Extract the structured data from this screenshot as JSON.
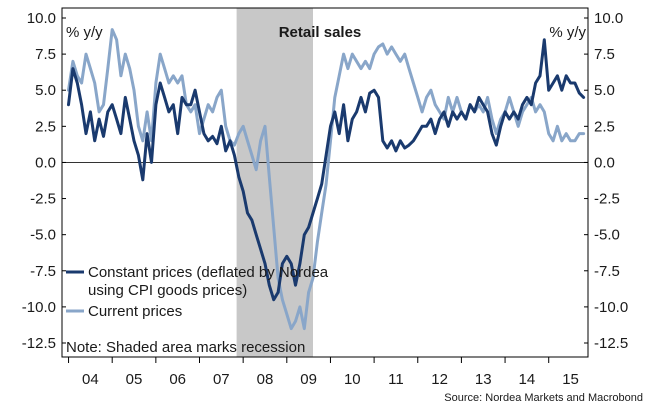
{
  "chart_data": {
    "type": "line",
    "title": "Retail sales",
    "ylabel_left": "% y/y",
    "ylabel_right": "% y/y",
    "ylim": [
      -12.5,
      10.0
    ],
    "yticks": [
      10.0,
      7.5,
      5.0,
      2.5,
      0.0,
      -2.5,
      -5.0,
      -7.5,
      -10.0,
      -12.5
    ],
    "ytick_labels": [
      "10.0",
      "7.5",
      "5.0",
      "2.5",
      "0.0",
      "-2.5",
      "-5.0",
      "-7.5",
      "-10.0",
      "-12.5"
    ],
    "xlim": [
      2003.85,
      2015.9
    ],
    "x_tick_labels": [
      "04",
      "05",
      "06",
      "07",
      "08",
      "09",
      "10",
      "11",
      "12",
      "13",
      "14",
      "15"
    ],
    "recession": {
      "start": 2007.85,
      "end": 2009.6
    },
    "legend": [
      "Constant prices (deflated by Nordea using CPI goods prices)",
      "Current prices"
    ],
    "legend_placement": "bottom-left",
    "note": "Note: Shaded area marks recession",
    "source": "Source: Nordea Markets and Macrobond",
    "colors": {
      "constant": "#1a3a6e",
      "current": "#89a6c9",
      "recession": "#c8c8c8"
    },
    "series": [
      {
        "name": "Constant prices (deflated by Nordea using CPI goods prices)",
        "points": [
          [
            2004.0,
            4.0
          ],
          [
            2004.1,
            6.5
          ],
          [
            2004.2,
            5.5
          ],
          [
            2004.3,
            4.0
          ],
          [
            2004.4,
            2.0
          ],
          [
            2004.5,
            3.5
          ],
          [
            2004.6,
            1.5
          ],
          [
            2004.7,
            3.0
          ],
          [
            2004.8,
            1.8
          ],
          [
            2004.9,
            3.5
          ],
          [
            2005.0,
            4.0
          ],
          [
            2005.1,
            3.0
          ],
          [
            2005.2,
            2.0
          ],
          [
            2005.3,
            4.5
          ],
          [
            2005.4,
            3.0
          ],
          [
            2005.5,
            1.5
          ],
          [
            2005.6,
            0.5
          ],
          [
            2005.7,
            -1.2
          ],
          [
            2005.8,
            2.0
          ],
          [
            2005.9,
            0.0
          ],
          [
            2006.0,
            4.0
          ],
          [
            2006.1,
            5.5
          ],
          [
            2006.2,
            4.5
          ],
          [
            2006.3,
            3.5
          ],
          [
            2006.4,
            4.0
          ],
          [
            2006.5,
            2.0
          ],
          [
            2006.6,
            4.5
          ],
          [
            2006.7,
            4.0
          ],
          [
            2006.8,
            4.0
          ],
          [
            2006.9,
            5.0
          ],
          [
            2007.0,
            3.5
          ],
          [
            2007.1,
            2.0
          ],
          [
            2007.2,
            1.5
          ],
          [
            2007.3,
            1.8
          ],
          [
            2007.4,
            1.3
          ],
          [
            2007.5,
            2.5
          ],
          [
            2007.6,
            0.8
          ],
          [
            2007.7,
            1.5
          ],
          [
            2007.8,
            0.5
          ],
          [
            2007.9,
            -1.0
          ],
          [
            2008.0,
            -2.0
          ],
          [
            2008.1,
            -3.5
          ],
          [
            2008.2,
            -4.0
          ],
          [
            2008.3,
            -5.0
          ],
          [
            2008.4,
            -6.0
          ],
          [
            2008.5,
            -7.0
          ],
          [
            2008.6,
            -8.5
          ],
          [
            2008.7,
            -9.5
          ],
          [
            2008.8,
            -9.0
          ],
          [
            2008.9,
            -7.0
          ],
          [
            2009.0,
            -6.5
          ],
          [
            2009.1,
            -7.0
          ],
          [
            2009.2,
            -8.5
          ],
          [
            2009.3,
            -7.0
          ],
          [
            2009.4,
            -5.0
          ],
          [
            2009.5,
            -4.5
          ],
          [
            2009.6,
            -3.5
          ],
          [
            2009.7,
            -2.5
          ],
          [
            2009.8,
            -1.5
          ],
          [
            2009.9,
            0.5
          ],
          [
            2010.0,
            2.5
          ],
          [
            2010.1,
            3.5
          ],
          [
            2010.2,
            2.0
          ],
          [
            2010.3,
            4.0
          ],
          [
            2010.4,
            1.5
          ],
          [
            2010.5,
            3.0
          ],
          [
            2010.6,
            3.5
          ],
          [
            2010.7,
            4.5
          ],
          [
            2010.8,
            3.5
          ],
          [
            2010.9,
            4.8
          ],
          [
            2011.0,
            5.0
          ],
          [
            2011.1,
            4.5
          ],
          [
            2011.2,
            1.5
          ],
          [
            2011.3,
            1.0
          ],
          [
            2011.4,
            1.5
          ],
          [
            2011.5,
            0.8
          ],
          [
            2011.6,
            1.5
          ],
          [
            2011.7,
            1.0
          ],
          [
            2011.8,
            1.2
          ],
          [
            2011.9,
            1.5
          ],
          [
            2012.0,
            2.0
          ],
          [
            2012.1,
            2.5
          ],
          [
            2012.2,
            2.5
          ],
          [
            2012.3,
            3.0
          ],
          [
            2012.4,
            2.0
          ],
          [
            2012.5,
            3.0
          ],
          [
            2012.6,
            3.5
          ],
          [
            2012.7,
            2.5
          ],
          [
            2012.8,
            3.5
          ],
          [
            2012.9,
            3.0
          ],
          [
            2013.0,
            3.5
          ],
          [
            2013.1,
            3.0
          ],
          [
            2013.2,
            4.0
          ],
          [
            2013.3,
            3.5
          ],
          [
            2013.4,
            4.5
          ],
          [
            2013.5,
            4.0
          ],
          [
            2013.6,
            3.5
          ],
          [
            2013.7,
            2.0
          ],
          [
            2013.8,
            1.2
          ],
          [
            2013.9,
            2.5
          ],
          [
            2014.0,
            3.5
          ],
          [
            2014.1,
            3.0
          ],
          [
            2014.2,
            3.5
          ],
          [
            2014.3,
            3.0
          ],
          [
            2014.4,
            4.0
          ],
          [
            2014.5,
            4.5
          ],
          [
            2014.6,
            4.0
          ],
          [
            2014.7,
            5.5
          ],
          [
            2014.8,
            6.0
          ],
          [
            2014.9,
            8.5
          ],
          [
            2015.0,
            5.0
          ],
          [
            2015.1,
            5.5
          ],
          [
            2015.2,
            6.0
          ],
          [
            2015.3,
            5.0
          ],
          [
            2015.4,
            6.0
          ],
          [
            2015.5,
            5.5
          ],
          [
            2015.6,
            5.5
          ],
          [
            2015.7,
            4.8
          ],
          [
            2015.8,
            4.5
          ]
        ]
      },
      {
        "name": "Current prices",
        "points": [
          [
            2004.0,
            5.0
          ],
          [
            2004.1,
            7.0
          ],
          [
            2004.2,
            6.0
          ],
          [
            2004.3,
            5.5
          ],
          [
            2004.4,
            7.5
          ],
          [
            2004.5,
            6.5
          ],
          [
            2004.6,
            5.5
          ],
          [
            2004.7,
            3.5
          ],
          [
            2004.8,
            4.0
          ],
          [
            2004.9,
            6.5
          ],
          [
            2005.0,
            9.2
          ],
          [
            2005.1,
            8.5
          ],
          [
            2005.2,
            6.0
          ],
          [
            2005.3,
            7.5
          ],
          [
            2005.4,
            6.5
          ],
          [
            2005.5,
            5.0
          ],
          [
            2005.6,
            2.5
          ],
          [
            2005.7,
            1.5
          ],
          [
            2005.8,
            3.5
          ],
          [
            2005.9,
            1.5
          ],
          [
            2006.0,
            5.5
          ],
          [
            2006.1,
            7.5
          ],
          [
            2006.2,
            6.5
          ],
          [
            2006.3,
            5.5
          ],
          [
            2006.4,
            6.0
          ],
          [
            2006.5,
            5.5
          ],
          [
            2006.6,
            6.0
          ],
          [
            2006.7,
            4.0
          ],
          [
            2006.8,
            3.5
          ],
          [
            2006.9,
            4.0
          ],
          [
            2007.0,
            2.0
          ],
          [
            2007.1,
            3.0
          ],
          [
            2007.2,
            4.0
          ],
          [
            2007.3,
            3.5
          ],
          [
            2007.4,
            4.5
          ],
          [
            2007.5,
            5.0
          ],
          [
            2007.6,
            2.5
          ],
          [
            2007.7,
            1.5
          ],
          [
            2007.8,
            1.2
          ],
          [
            2007.9,
            2.0
          ],
          [
            2008.0,
            2.5
          ],
          [
            2008.1,
            1.5
          ],
          [
            2008.2,
            0.5
          ],
          [
            2008.3,
            -0.5
          ],
          [
            2008.4,
            1.5
          ],
          [
            2008.5,
            2.5
          ],
          [
            2008.6,
            -1.0
          ],
          [
            2008.7,
            -4.5
          ],
          [
            2008.8,
            -8.0
          ],
          [
            2008.9,
            -9.5
          ],
          [
            2009.0,
            -10.5
          ],
          [
            2009.1,
            -11.5
          ],
          [
            2009.2,
            -11.0
          ],
          [
            2009.3,
            -10.0
          ],
          [
            2009.4,
            -11.5
          ],
          [
            2009.5,
            -9.0
          ],
          [
            2009.6,
            -8.0
          ],
          [
            2009.7,
            -5.5
          ],
          [
            2009.8,
            -3.5
          ],
          [
            2009.9,
            -1.5
          ],
          [
            2010.0,
            1.5
          ],
          [
            2010.1,
            4.5
          ],
          [
            2010.2,
            6.0
          ],
          [
            2010.3,
            7.5
          ],
          [
            2010.4,
            6.5
          ],
          [
            2010.5,
            7.5
          ],
          [
            2010.6,
            7.0
          ],
          [
            2010.7,
            6.5
          ],
          [
            2010.8,
            7.0
          ],
          [
            2010.9,
            6.5
          ],
          [
            2011.0,
            7.5
          ],
          [
            2011.1,
            8.0
          ],
          [
            2011.2,
            8.2
          ],
          [
            2011.3,
            7.5
          ],
          [
            2011.4,
            8.0
          ],
          [
            2011.5,
            7.5
          ],
          [
            2011.6,
            7.0
          ],
          [
            2011.7,
            7.5
          ],
          [
            2011.8,
            6.5
          ],
          [
            2011.9,
            5.5
          ],
          [
            2012.0,
            4.5
          ],
          [
            2012.1,
            3.5
          ],
          [
            2012.2,
            4.5
          ],
          [
            2012.3,
            5.0
          ],
          [
            2012.4,
            4.0
          ],
          [
            2012.5,
            3.5
          ],
          [
            2012.6,
            3.0
          ],
          [
            2012.7,
            4.5
          ],
          [
            2012.8,
            3.5
          ],
          [
            2012.9,
            4.5
          ],
          [
            2013.0,
            3.5
          ],
          [
            2013.1,
            3.0
          ],
          [
            2013.2,
            4.0
          ],
          [
            2013.3,
            3.5
          ],
          [
            2013.4,
            4.0
          ],
          [
            2013.5,
            3.5
          ],
          [
            2013.6,
            4.5
          ],
          [
            2013.7,
            3.0
          ],
          [
            2013.8,
            2.0
          ],
          [
            2013.9,
            3.0
          ],
          [
            2014.0,
            3.5
          ],
          [
            2014.1,
            4.5
          ],
          [
            2014.2,
            3.5
          ],
          [
            2014.3,
            2.5
          ],
          [
            2014.4,
            3.5
          ],
          [
            2014.5,
            4.0
          ],
          [
            2014.6,
            4.5
          ],
          [
            2014.7,
            3.5
          ],
          [
            2014.8,
            4.0
          ],
          [
            2014.9,
            3.5
          ],
          [
            2015.0,
            2.0
          ],
          [
            2015.1,
            1.5
          ],
          [
            2015.2,
            2.5
          ],
          [
            2015.3,
            1.5
          ],
          [
            2015.4,
            2.0
          ],
          [
            2015.5,
            1.5
          ],
          [
            2015.6,
            1.5
          ],
          [
            2015.7,
            2.0
          ],
          [
            2015.8,
            2.0
          ]
        ]
      }
    ]
  }
}
